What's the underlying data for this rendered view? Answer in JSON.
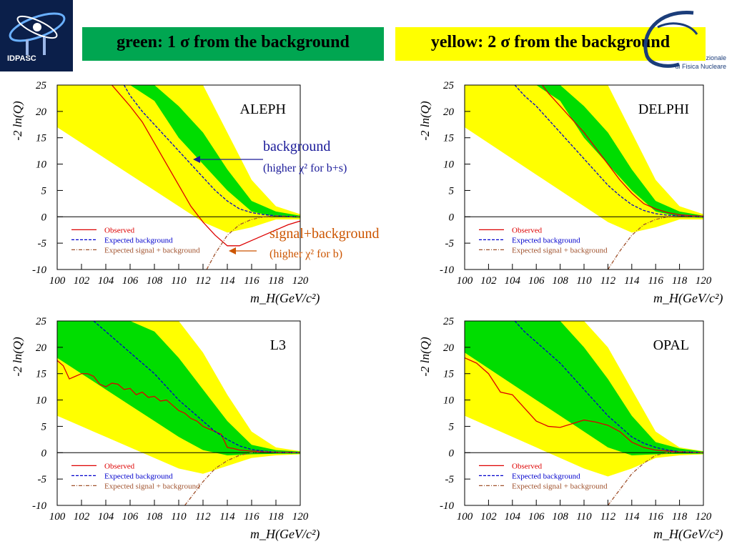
{
  "header": {
    "left_logo_text": "IDPASC",
    "green_label": "green: 1 σ from the background",
    "yellow_label": "yellow: 2 σ from the background",
    "right_logo_line1": "zionale",
    "right_logo_line2": "di Fisica Nucleare"
  },
  "colors": {
    "band_1sigma": "#00dd00",
    "band_2sigma": "#ffff00",
    "observed": "#dd0000",
    "expected_background": "#0000cc",
    "expected_signal_background": "#a0522d"
  },
  "annotations": {
    "background_label": "background",
    "background_sub": "(higher χ² for b+s)",
    "signal_label": "signal+background",
    "signal_sub": "(higher χ² for b)"
  },
  "chart_data": [
    {
      "type": "line",
      "title": "ALEPH",
      "xlabel": "m_H(GeV/c²)",
      "ylabel": "-2 ln(Q)",
      "xlim": [
        100,
        120
      ],
      "ylim": [
        -10,
        25
      ],
      "x_ticks": [
        "100",
        "102",
        "104",
        "106",
        "108",
        "110",
        "112",
        "114",
        "116",
        "118",
        "120"
      ],
      "y_ticks": [
        "25",
        "20",
        "15",
        "10",
        "5",
        "0",
        "-5",
        "-10"
      ],
      "legend_position": "bottom-left",
      "series": [
        {
          "name": "Observed",
          "x": [
            104.5,
            106,
            107,
            108,
            109,
            110,
            111,
            112,
            113,
            114,
            115,
            116,
            117,
            118,
            119,
            120
          ],
          "y": [
            25,
            21,
            18,
            14,
            10,
            6,
            2,
            -1,
            -3.5,
            -5.5,
            -5.5,
            -4.5,
            -3.5,
            -2.5,
            -1.5,
            -0.8
          ]
        },
        {
          "name": "Expected background",
          "x": [
            105.5,
            106,
            107,
            108,
            109,
            110,
            111,
            112,
            113,
            114,
            115,
            116,
            117,
            118,
            119,
            120
          ],
          "y": [
            25,
            23,
            20,
            17.5,
            15,
            12.5,
            10,
            7.5,
            5,
            3,
            1.5,
            0.8,
            0.4,
            0.2,
            0.1,
            0
          ]
        },
        {
          "name": "Expected signal + background",
          "x": [
            112.3,
            113,
            114,
            115,
            116,
            117,
            118,
            119,
            120
          ],
          "y": [
            -10,
            -7,
            -3.5,
            -1.5,
            -0.5,
            0,
            0.2,
            0.1,
            0
          ]
        }
      ],
      "band_1sigma": {
        "x": [
          100,
          102,
          104,
          106,
          108,
          110,
          112,
          114,
          116,
          118,
          120
        ],
        "upper": [
          25,
          25,
          25,
          25,
          25,
          21,
          16,
          9,
          3,
          1,
          0.2
        ],
        "lower": [
          25,
          25,
          25,
          25,
          22,
          15,
          10,
          5,
          1,
          0,
          -0.2
        ]
      },
      "band_2sigma": {
        "x": [
          100,
          102,
          104,
          106,
          108,
          110,
          112,
          114,
          116,
          118,
          120
        ],
        "upper": [
          25,
          25,
          25,
          25,
          25,
          25,
          25,
          16,
          7,
          2,
          0.5
        ],
        "lower": [
          17,
          14,
          11,
          8,
          5,
          2,
          -1,
          -3,
          -2,
          -0.5,
          -0.5
        ]
      }
    },
    {
      "type": "line",
      "title": "DELPHI",
      "xlabel": "m_H(GeV/c²)",
      "ylabel": "-2 ln(Q)",
      "xlim": [
        100,
        120
      ],
      "ylim": [
        -10,
        25
      ],
      "x_ticks": [
        "100",
        "102",
        "104",
        "106",
        "108",
        "110",
        "112",
        "114",
        "116",
        "118",
        "120"
      ],
      "y_ticks": [
        "25",
        "20",
        "15",
        "10",
        "5",
        "0",
        "-5",
        "-10"
      ],
      "legend_position": "bottom-left",
      "series": [
        {
          "name": "Observed",
          "x": [
            106.5,
            107,
            108,
            109,
            110,
            111,
            112,
            113,
            114,
            115,
            116,
            117,
            118,
            119,
            120
          ],
          "y": [
            25,
            23.5,
            21,
            18.5,
            16,
            13,
            10,
            7,
            4.5,
            2.5,
            1.5,
            0.8,
            0.4,
            0.2,
            0.1
          ]
        },
        {
          "name": "Expected background",
          "x": [
            104.2,
            105,
            106,
            107,
            108,
            109,
            110,
            111,
            112,
            113,
            114,
            115,
            116,
            117,
            118,
            119,
            120
          ],
          "y": [
            25,
            23,
            21,
            18.5,
            16,
            13.5,
            11,
            8.5,
            6,
            4,
            2.3,
            1.2,
            0.6,
            0.3,
            0.2,
            0.1,
            0
          ]
        },
        {
          "name": "Expected signal + background",
          "x": [
            112,
            113,
            114,
            115,
            116,
            117,
            118,
            119,
            120
          ],
          "y": [
            -10,
            -6.5,
            -3.5,
            -1.5,
            -0.5,
            0,
            0.2,
            0.1,
            0
          ]
        }
      ],
      "band_1sigma": {
        "x": [
          100,
          102,
          104,
          106,
          108,
          110,
          112,
          114,
          116,
          118,
          120
        ],
        "upper": [
          25,
          25,
          25,
          25,
          25,
          21,
          16,
          9,
          3,
          1,
          0.2
        ],
        "lower": [
          25,
          25,
          25,
          25,
          22,
          15,
          10,
          5,
          1,
          0,
          -0.2
        ]
      },
      "band_2sigma": {
        "x": [
          100,
          102,
          104,
          106,
          108,
          110,
          112,
          114,
          116,
          118,
          120
        ],
        "upper": [
          25,
          25,
          25,
          25,
          25,
          25,
          25,
          16,
          7,
          2,
          0.5
        ],
        "lower": [
          17,
          14,
          11,
          8,
          5,
          2,
          -1,
          -3,
          -2,
          -0.5,
          -0.5
        ]
      }
    },
    {
      "type": "line",
      "title": "L3",
      "xlabel": "m_H(GeV/c²)",
      "ylabel": "-2 ln(Q)",
      "xlim": [
        100,
        120
      ],
      "ylim": [
        -10,
        25
      ],
      "x_ticks": [
        "100",
        "102",
        "104",
        "106",
        "108",
        "110",
        "112",
        "114",
        "116",
        "118",
        "120"
      ],
      "y_ticks": [
        "25",
        "20",
        "15",
        "10",
        "5",
        "0",
        "-5",
        "-10"
      ],
      "legend_position": "bottom-left",
      "series": [
        {
          "name": "Observed",
          "x": [
            100,
            100.5,
            101,
            101.5,
            102,
            102.5,
            103,
            103.5,
            104,
            104.5,
            105,
            105.5,
            106,
            106.5,
            107,
            107.5,
            108,
            108.5,
            109,
            109.5,
            110,
            110.5,
            111,
            111.5,
            112,
            112.5,
            113,
            113.5,
            114,
            114.5,
            115,
            116,
            117,
            118,
            119,
            120
          ],
          "y": [
            17.5,
            16.5,
            14,
            14.5,
            15,
            15,
            14.5,
            13,
            12.5,
            13.2,
            13,
            12,
            12.2,
            11,
            11.5,
            10.5,
            10.7,
            9.8,
            10,
            9,
            8,
            7.5,
            6.5,
            6,
            5,
            4.5,
            4,
            3.5,
            1,
            0.8,
            0.5,
            0.3,
            0.2,
            0.1,
            0.1,
            0
          ]
        },
        {
          "name": "Expected background",
          "x": [
            103,
            104,
            105,
            106,
            107,
            108,
            109,
            110,
            111,
            112,
            113,
            114,
            115,
            116,
            117,
            118,
            119,
            120
          ],
          "y": [
            25,
            23,
            21,
            19,
            17,
            15,
            12.5,
            10,
            8,
            6,
            4,
            2.5,
            1.3,
            0.6,
            0.3,
            0.1,
            0.05,
            0
          ]
        },
        {
          "name": "Expected signal + background",
          "x": [
            110.5,
            111,
            112,
            113,
            114,
            115,
            116,
            117,
            118,
            119,
            120
          ],
          "y": [
            -10,
            -8.5,
            -5.5,
            -3,
            -1.5,
            -0.5,
            0,
            0.2,
            0.1,
            0.05,
            0
          ]
        }
      ],
      "band_1sigma": {
        "x": [
          100,
          102,
          104,
          106,
          108,
          110,
          112,
          114,
          116,
          118,
          120
        ],
        "upper": [
          25,
          25,
          25,
          25,
          23,
          18,
          12,
          6,
          1.5,
          0.5,
          0.2
        ],
        "lower": [
          18,
          15,
          12,
          9,
          6,
          3,
          0.5,
          -0.5,
          -0.3,
          -0.2,
          -0.2
        ]
      },
      "band_2sigma": {
        "x": [
          100,
          102,
          104,
          106,
          108,
          110,
          112,
          114,
          116,
          118,
          120
        ],
        "upper": [
          25,
          25,
          25,
          25,
          25,
          25,
          19,
          11,
          4,
          1,
          0.3
        ],
        "lower": [
          7,
          5,
          3,
          1,
          -1,
          -3,
          -4,
          -2.5,
          -1,
          -0.5,
          -0.3
        ]
      }
    },
    {
      "type": "line",
      "title": "OPAL",
      "xlabel": "m_H(GeV/c²)",
      "ylabel": "-2 ln(Q)",
      "xlim": [
        100,
        120
      ],
      "ylim": [
        -10,
        25
      ],
      "x_ticks": [
        "100",
        "102",
        "104",
        "106",
        "108",
        "110",
        "112",
        "114",
        "116",
        "118",
        "120"
      ],
      "y_ticks": [
        "25",
        "20",
        "15",
        "10",
        "5",
        "0",
        "-5",
        "-10"
      ],
      "legend_position": "bottom-left",
      "series": [
        {
          "name": "Observed",
          "x": [
            100,
            101,
            102,
            103,
            104,
            105,
            106,
            107,
            108,
            109,
            110,
            111,
            112,
            113,
            114,
            115,
            116,
            117,
            118,
            119,
            120
          ],
          "y": [
            18,
            17,
            15,
            11.5,
            11,
            8.5,
            6,
            5,
            4.8,
            5.5,
            6.2,
            5.8,
            5.2,
            4,
            2,
            1,
            0.5,
            0.3,
            0.2,
            0.1,
            0
          ]
        },
        {
          "name": "Expected background",
          "x": [
            104.2,
            105,
            106,
            107,
            108,
            109,
            110,
            111,
            112,
            113,
            114,
            115,
            116,
            117,
            118,
            119,
            120
          ],
          "y": [
            25,
            23,
            21,
            19,
            17,
            14.5,
            12,
            9.5,
            7,
            5,
            3,
            1.8,
            1,
            0.5,
            0.2,
            0.1,
            0
          ]
        },
        {
          "name": "Expected signal + background",
          "x": [
            112,
            113,
            114,
            115,
            116,
            117,
            118,
            119,
            120
          ],
          "y": [
            -10,
            -7,
            -4,
            -2,
            -0.5,
            0,
            0.2,
            0.1,
            0
          ]
        }
      ],
      "band_1sigma": {
        "x": [
          100,
          102,
          104,
          106,
          108,
          110,
          112,
          114,
          116,
          118,
          120
        ],
        "upper": [
          25,
          25,
          25,
          25,
          25,
          20,
          14,
          7,
          2,
          0.8,
          0.2
        ],
        "lower": [
          19,
          16,
          13,
          10,
          7,
          4,
          1,
          -0.5,
          -0.3,
          -0.2,
          -0.2
        ]
      },
      "band_2sigma": {
        "x": [
          100,
          102,
          104,
          106,
          108,
          110,
          112,
          114,
          116,
          118,
          120
        ],
        "upper": [
          25,
          25,
          25,
          25,
          25,
          25,
          20,
          12,
          4,
          1,
          0.3
        ],
        "lower": [
          7,
          5,
          3,
          1,
          -1,
          -3,
          -4.5,
          -3,
          -1,
          -0.5,
          -0.3
        ]
      }
    }
  ]
}
